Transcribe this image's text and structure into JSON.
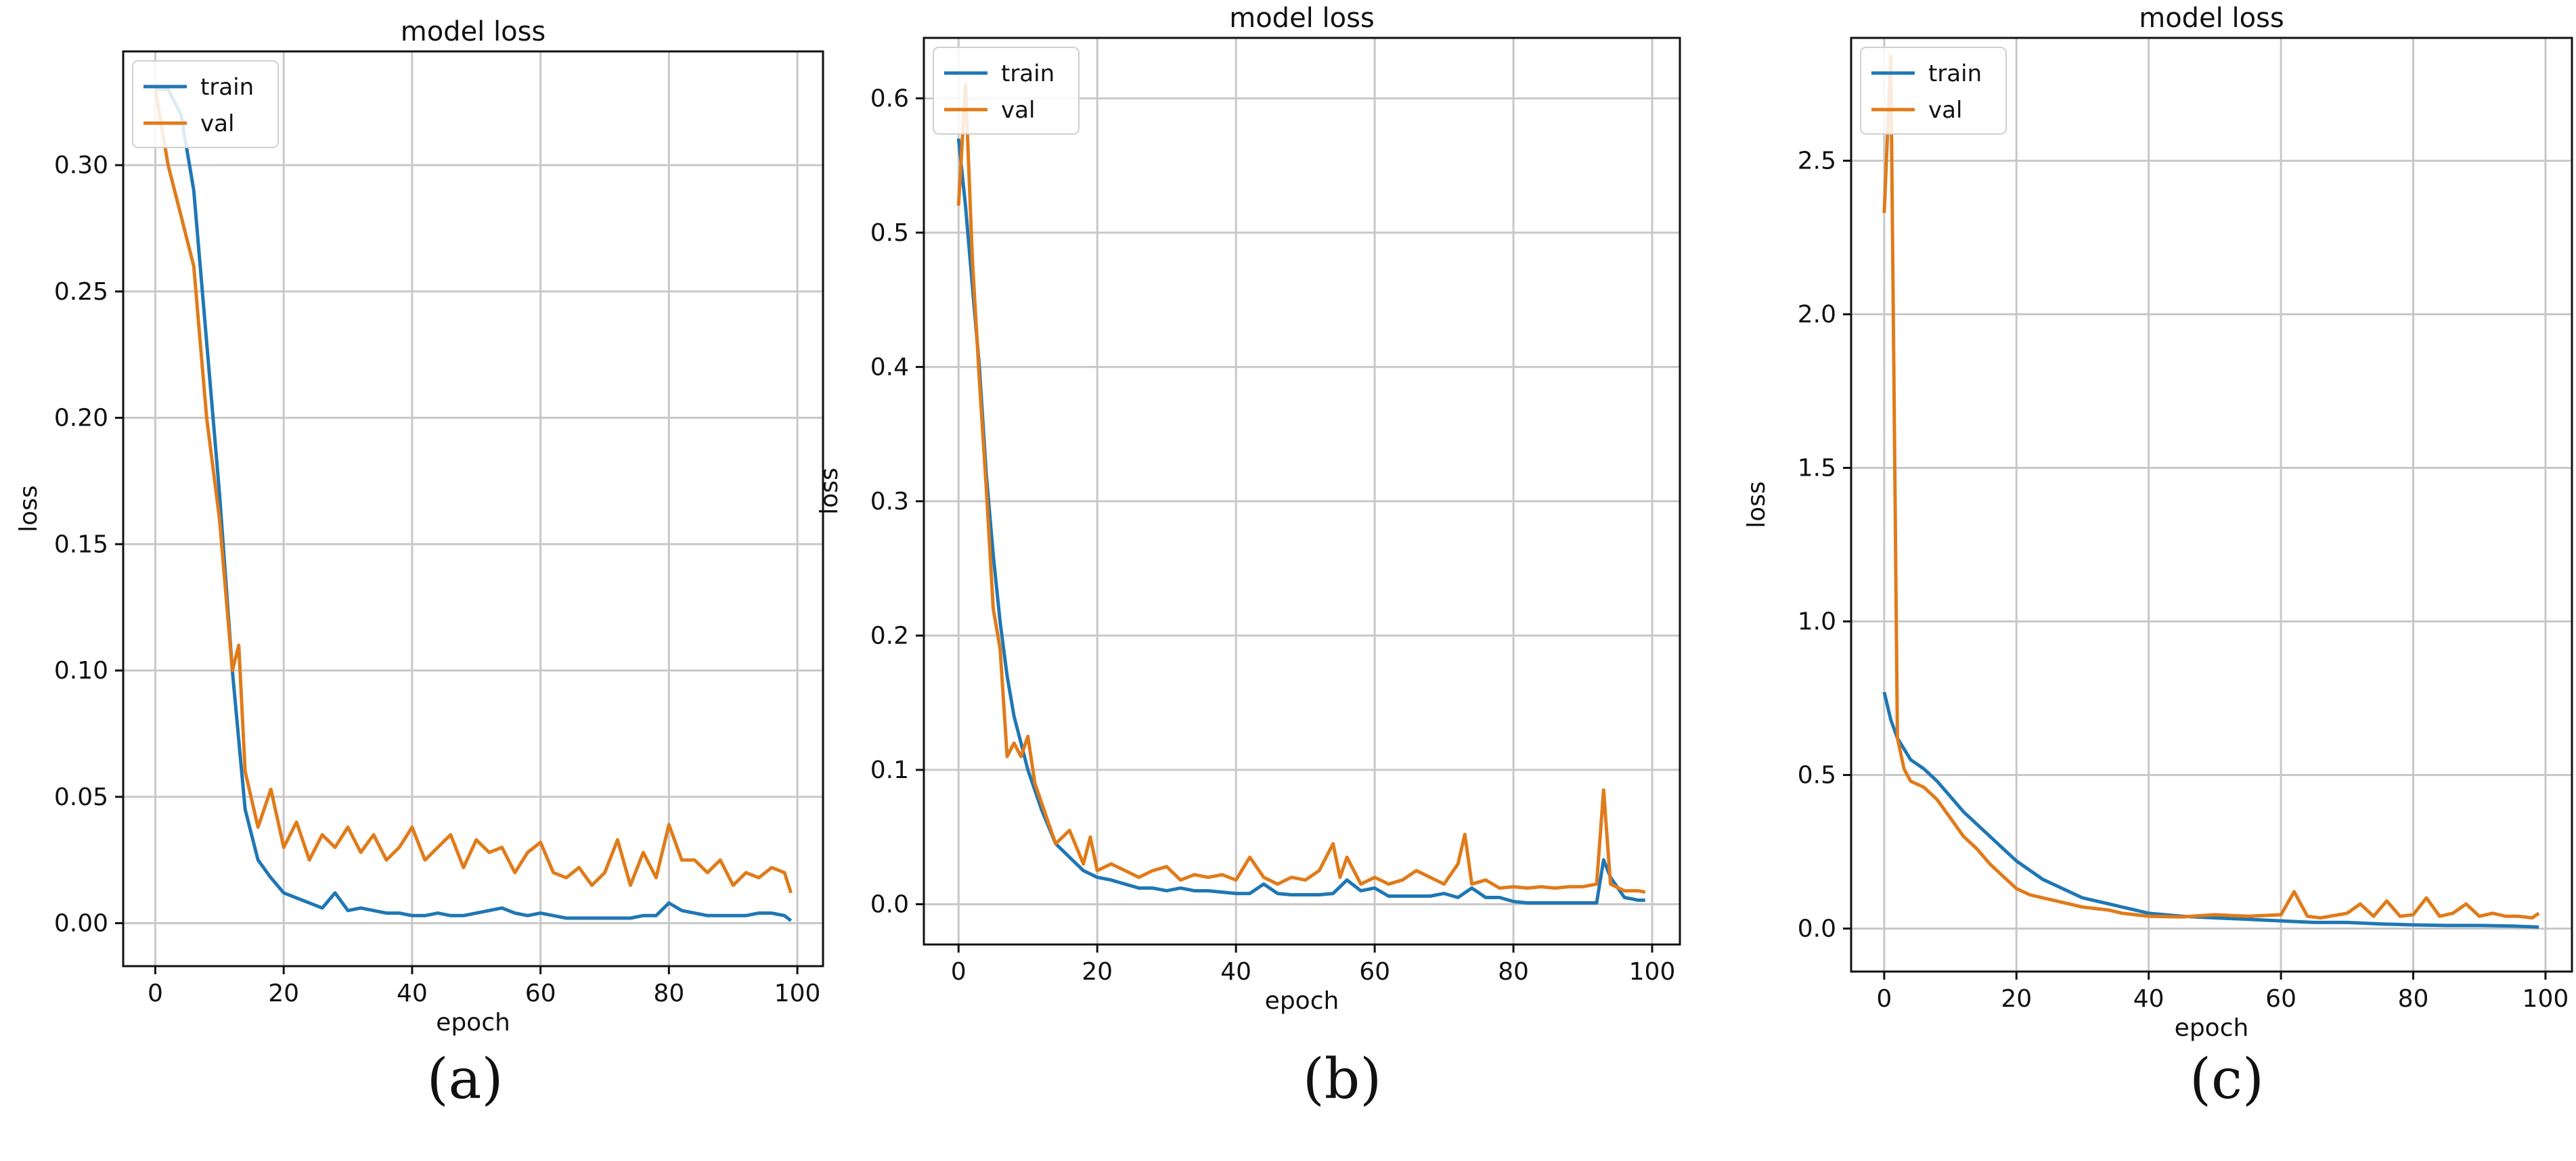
{
  "colors": {
    "train": "#1f77b4",
    "val": "#e07b1a",
    "grid": "#c8c8c8",
    "axis": "#111111"
  },
  "chart_data": [
    {
      "panel": "a",
      "caption": "(a)",
      "type": "line",
      "title": "model loss",
      "xlabel": "epoch",
      "ylabel": "loss",
      "xlim": [
        -5,
        104
      ],
      "ylim": [
        -0.017,
        0.345
      ],
      "xticks": [
        0,
        20,
        40,
        60,
        80,
        100
      ],
      "xtick_labels": [
        "0",
        "20",
        "40",
        "60",
        "80",
        "100"
      ],
      "yticks": [
        0,
        0.05,
        0.1,
        0.15,
        0.2,
        0.25,
        0.3
      ],
      "ytick_labels": [
        "0.00",
        "0.05",
        "0.10",
        "0.15",
        "0.20",
        "0.25",
        "0.30"
      ],
      "legend_loc": "top-left",
      "grid": true,
      "series": [
        {
          "name": "train",
          "color_key": "train",
          "x": [
            0,
            2,
            4,
            6,
            8,
            10,
            12,
            14,
            16,
            18,
            20,
            22,
            24,
            26,
            28,
            30,
            32,
            34,
            36,
            38,
            40,
            42,
            44,
            46,
            48,
            50,
            52,
            54,
            56,
            58,
            60,
            62,
            64,
            66,
            68,
            70,
            72,
            74,
            76,
            78,
            80,
            82,
            84,
            86,
            88,
            90,
            92,
            94,
            96,
            98,
            99
          ],
          "y": [
            0.33,
            0.33,
            0.32,
            0.29,
            0.23,
            0.17,
            0.1,
            0.045,
            0.025,
            0.018,
            0.012,
            0.01,
            0.008,
            0.006,
            0.012,
            0.005,
            0.006,
            0.005,
            0.004,
            0.004,
            0.003,
            0.003,
            0.004,
            0.003,
            0.003,
            0.004,
            0.005,
            0.006,
            0.004,
            0.003,
            0.004,
            0.003,
            0.002,
            0.002,
            0.002,
            0.002,
            0.002,
            0.002,
            0.003,
            0.003,
            0.008,
            0.005,
            0.004,
            0.003,
            0.003,
            0.003,
            0.003,
            0.004,
            0.004,
            0.003,
            0.001
          ]
        },
        {
          "name": "val",
          "color_key": "val",
          "x": [
            0,
            2,
            4,
            6,
            8,
            10,
            12,
            13,
            14,
            16,
            18,
            20,
            22,
            24,
            26,
            28,
            30,
            32,
            34,
            36,
            38,
            40,
            42,
            44,
            46,
            48,
            50,
            52,
            54,
            56,
            58,
            60,
            62,
            64,
            66,
            68,
            70,
            72,
            74,
            76,
            78,
            80,
            82,
            84,
            86,
            88,
            90,
            92,
            94,
            96,
            98,
            99
          ],
          "y": [
            0.33,
            0.3,
            0.28,
            0.26,
            0.2,
            0.16,
            0.1,
            0.11,
            0.06,
            0.038,
            0.053,
            0.03,
            0.04,
            0.025,
            0.035,
            0.03,
            0.038,
            0.028,
            0.035,
            0.025,
            0.03,
            0.038,
            0.025,
            0.03,
            0.035,
            0.022,
            0.033,
            0.028,
            0.03,
            0.02,
            0.028,
            0.032,
            0.02,
            0.018,
            0.022,
            0.015,
            0.02,
            0.033,
            0.015,
            0.028,
            0.018,
            0.039,
            0.025,
            0.025,
            0.02,
            0.025,
            0.015,
            0.02,
            0.018,
            0.022,
            0.02,
            0.012
          ]
        }
      ]
    },
    {
      "panel": "b",
      "caption": "(b)",
      "type": "line",
      "title": "model loss",
      "xlabel": "epoch",
      "ylabel": "loss",
      "xlim": [
        -5,
        104
      ],
      "ylim": [
        -0.03,
        0.645
      ],
      "xticks": [
        0,
        20,
        40,
        60,
        80,
        100
      ],
      "xtick_labels": [
        "0",
        "20",
        "40",
        "60",
        "80",
        "100"
      ],
      "yticks": [
        0,
        0.1,
        0.2,
        0.3,
        0.4,
        0.5,
        0.6
      ],
      "ytick_labels": [
        "0.0",
        "0.1",
        "0.2",
        "0.3",
        "0.4",
        "0.5",
        "0.6"
      ],
      "legend_loc": "top-left",
      "grid": true,
      "series": [
        {
          "name": "train",
          "color_key": "train",
          "x": [
            0,
            1,
            2,
            3,
            4,
            5,
            6,
            7,
            8,
            9,
            10,
            12,
            14,
            16,
            18,
            20,
            22,
            24,
            26,
            28,
            30,
            32,
            34,
            36,
            38,
            40,
            42,
            44,
            46,
            48,
            50,
            52,
            54,
            56,
            58,
            60,
            62,
            64,
            66,
            68,
            70,
            72,
            74,
            76,
            78,
            80,
            82,
            84,
            86,
            88,
            90,
            92,
            93,
            94,
            96,
            98,
            99
          ],
          "y": [
            0.57,
            0.52,
            0.46,
            0.4,
            0.32,
            0.26,
            0.21,
            0.17,
            0.14,
            0.12,
            0.1,
            0.07,
            0.045,
            0.035,
            0.025,
            0.02,
            0.018,
            0.015,
            0.012,
            0.012,
            0.01,
            0.012,
            0.01,
            0.01,
            0.009,
            0.008,
            0.008,
            0.015,
            0.008,
            0.007,
            0.007,
            0.007,
            0.008,
            0.018,
            0.01,
            0.012,
            0.006,
            0.006,
            0.006,
            0.006,
            0.008,
            0.005,
            0.012,
            0.005,
            0.005,
            0.002,
            0.001,
            0.001,
            0.001,
            0.001,
            0.001,
            0.001,
            0.033,
            0.02,
            0.005,
            0.003,
            0.003
          ]
        },
        {
          "name": "val",
          "color_key": "val",
          "x": [
            0,
            1,
            2,
            3,
            4,
            5,
            6,
            7,
            8,
            9,
            10,
            11,
            12,
            14,
            16,
            18,
            19,
            20,
            22,
            24,
            26,
            28,
            30,
            32,
            34,
            36,
            38,
            40,
            42,
            44,
            46,
            48,
            50,
            52,
            54,
            55,
            56,
            58,
            60,
            62,
            64,
            66,
            68,
            70,
            72,
            73,
            74,
            76,
            78,
            80,
            82,
            84,
            86,
            88,
            90,
            92,
            93,
            94,
            96,
            98,
            99
          ],
          "y": [
            0.52,
            0.61,
            0.48,
            0.39,
            0.31,
            0.22,
            0.19,
            0.11,
            0.12,
            0.11,
            0.125,
            0.09,
            0.075,
            0.045,
            0.055,
            0.03,
            0.05,
            0.025,
            0.03,
            0.025,
            0.02,
            0.025,
            0.028,
            0.018,
            0.022,
            0.02,
            0.022,
            0.018,
            0.035,
            0.02,
            0.015,
            0.02,
            0.018,
            0.025,
            0.045,
            0.02,
            0.035,
            0.015,
            0.02,
            0.015,
            0.018,
            0.025,
            0.02,
            0.015,
            0.03,
            0.052,
            0.015,
            0.018,
            0.012,
            0.013,
            0.012,
            0.013,
            0.012,
            0.013,
            0.013,
            0.015,
            0.085,
            0.015,
            0.01,
            0.01,
            0.009
          ]
        }
      ]
    },
    {
      "panel": "c",
      "caption": "(c)",
      "type": "line",
      "title": "model loss",
      "xlabel": "epoch",
      "ylabel": "loss",
      "xlim": [
        -5,
        104
      ],
      "ylim": [
        -0.14,
        2.9
      ],
      "xticks": [
        0,
        20,
        40,
        60,
        80,
        100
      ],
      "xtick_labels": [
        "0",
        "20",
        "40",
        "60",
        "80",
        "100"
      ],
      "yticks": [
        0,
        0.5,
        1,
        1.5,
        2,
        2.5
      ],
      "ytick_labels": [
        "0.0",
        "0.5",
        "1.0",
        "1.5",
        "2.0",
        "2.5"
      ],
      "legend_loc": "top-left",
      "grid": true,
      "series": [
        {
          "name": "train",
          "color_key": "train",
          "x": [
            0,
            1,
            2,
            4,
            6,
            8,
            10,
            12,
            14,
            16,
            18,
            20,
            22,
            24,
            26,
            28,
            30,
            32,
            34,
            36,
            38,
            40,
            45,
            50,
            55,
            60,
            65,
            70,
            75,
            80,
            85,
            90,
            95,
            99
          ],
          "y": [
            0.77,
            0.68,
            0.62,
            0.55,
            0.52,
            0.48,
            0.43,
            0.38,
            0.34,
            0.3,
            0.26,
            0.22,
            0.19,
            0.16,
            0.14,
            0.12,
            0.1,
            0.09,
            0.08,
            0.07,
            0.06,
            0.05,
            0.04,
            0.035,
            0.03,
            0.025,
            0.02,
            0.02,
            0.015,
            0.012,
            0.01,
            0.01,
            0.008,
            0.005
          ]
        },
        {
          "name": "val",
          "color_key": "val",
          "x": [
            0,
            1,
            2,
            3,
            4,
            6,
            8,
            10,
            12,
            14,
            16,
            18,
            20,
            22,
            24,
            26,
            28,
            30,
            32,
            34,
            36,
            38,
            40,
            45,
            50,
            55,
            60,
            62,
            64,
            66,
            70,
            72,
            74,
            76,
            78,
            80,
            82,
            84,
            86,
            88,
            90,
            92,
            94,
            96,
            98,
            99
          ],
          "y": [
            2.33,
            2.84,
            0.62,
            0.52,
            0.48,
            0.46,
            0.42,
            0.36,
            0.3,
            0.26,
            0.21,
            0.17,
            0.13,
            0.11,
            0.1,
            0.09,
            0.08,
            0.07,
            0.065,
            0.06,
            0.05,
            0.045,
            0.04,
            0.038,
            0.045,
            0.04,
            0.045,
            0.12,
            0.04,
            0.035,
            0.05,
            0.08,
            0.04,
            0.09,
            0.04,
            0.045,
            0.1,
            0.04,
            0.05,
            0.08,
            0.04,
            0.05,
            0.04,
            0.04,
            0.035,
            0.05
          ]
        }
      ]
    }
  ]
}
